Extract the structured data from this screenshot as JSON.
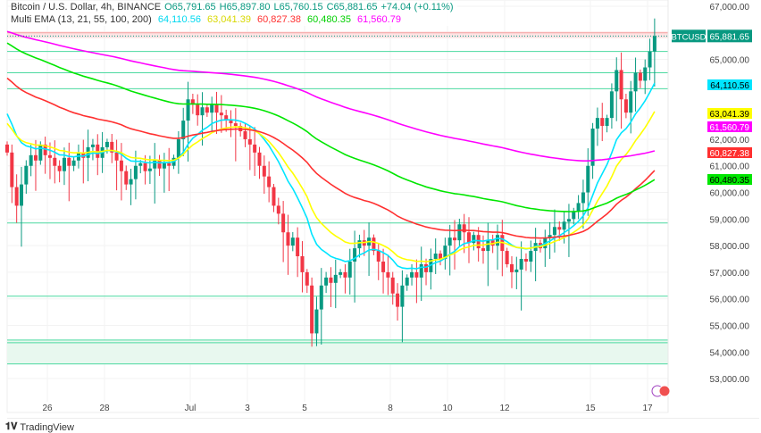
{
  "header": {
    "line1": "Bitcoin / U.S. Dollar, 4h, BINANCE",
    "ohlc": {
      "o": "O65,791.65",
      "h": "H65,897.80",
      "l": "L65,760.15",
      "c": "C65,881.65",
      "chg": "+74.04 (+0.11%)"
    },
    "indicator": "Multi EMA (13, 21, 55, 100, 200)",
    "ema_values": [
      "64,110.56",
      "63,041.39",
      "60,827.38",
      "60,480.35",
      "61,560.79"
    ]
  },
  "brand": "TradingView",
  "colors": {
    "up": "#089981",
    "down": "#f23645",
    "ema13": "#00e5ff",
    "ema21": "#ffff00",
    "ema55": "#ff3030",
    "ema100": "#00e600",
    "ema200": "#ff00ff",
    "hline": "#4cd9a0"
  },
  "chart_data": {
    "type": "candlestick",
    "symbol": "BTCUSD",
    "interval": "4h",
    "last_price": "65,881.65",
    "ylim": [
      52700,
      67200
    ],
    "y_ticks": [
      "67,000.00",
      "65,000.00",
      "62,000.00",
      "61,000.00",
      "60,000.00",
      "59,000.00",
      "58,000.00",
      "57,000.00",
      "56,000.00",
      "55,000.00",
      "54,000.00",
      "53,000.00"
    ],
    "x_ticks": [
      "26",
      "28",
      "Jul",
      "3",
      "5",
      "8",
      "10",
      "12",
      "15",
      "17"
    ],
    "closes": [
      61500,
      60200,
      59500,
      60300,
      61000,
      61400,
      61200,
      61800,
      61400,
      61300,
      61000,
      60800,
      61300,
      61000,
      61200,
      61500,
      61300,
      61700,
      61800,
      61300,
      61700,
      61900,
      61500,
      61200,
      60800,
      60300,
      60500,
      61000,
      61100,
      60800,
      60900,
      61200,
      60900,
      61100,
      61000,
      61300,
      62000,
      62700,
      63500,
      63300,
      62900,
      63200,
      63000,
      63300,
      63000,
      62900,
      62700,
      62600,
      62500,
      62300,
      62000,
      61800,
      61500,
      61000,
      60600,
      60200,
      59500,
      59200,
      58500,
      58000,
      58300,
      57600,
      57000,
      56500,
      54700,
      55600,
      56500,
      56800,
      56600,
      56900,
      57000,
      56800,
      57400,
      57900,
      58200,
      58000,
      58300,
      57800,
      57400,
      57000,
      56800,
      56200,
      55700,
      56500,
      56800,
      57000,
      56800,
      57300,
      57000,
      57500,
      57700,
      57500,
      58000,
      58300,
      58200,
      58800,
      58500,
      58100,
      58400,
      57900,
      57800,
      58200,
      58000,
      58400,
      57800,
      57300,
      57000,
      57100,
      57500,
      57400,
      57800,
      58100,
      57900,
      58300,
      58400,
      58700,
      58600,
      58900,
      59000,
      59300,
      59600,
      60000,
      61000,
      62400,
      62800,
      62500,
      62800,
      63800,
      64600,
      63500,
      63000,
      63800,
      64500,
      64200,
      64700,
      65300,
      65880
    ],
    "series": [
      {
        "name": "EMA 13",
        "last": 64110.56,
        "label": "64,110.56"
      },
      {
        "name": "EMA 21",
        "last": 63041.39,
        "label": "63,041.39"
      },
      {
        "name": "EMA 55",
        "last": 60827.38,
        "label": "60,827.38"
      },
      {
        "name": "EMA 100",
        "last": 60480.35,
        "label": "60,480.35"
      },
      {
        "name": "EMA 200",
        "last": 61560.79,
        "label": "61,560.79"
      }
    ],
    "horizontal_levels": [
      66000,
      65300,
      64500,
      63900,
      58850,
      56100,
      54450,
      54350,
      53550
    ]
  }
}
